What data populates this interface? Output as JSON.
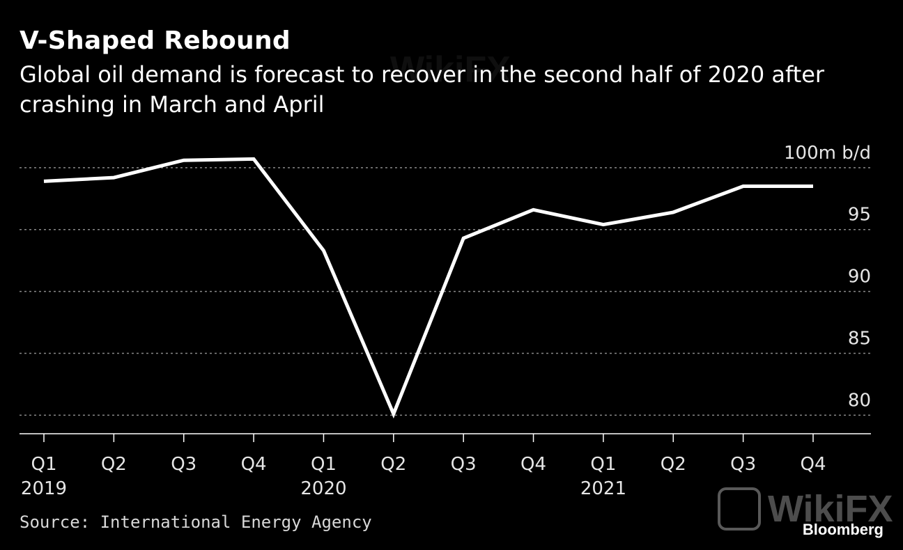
{
  "title": "V-Shaped Rebound",
  "subtitle": "Global oil demand is forecast to recover in the second half of 2020 after crashing in March and April",
  "source": "Source: International Energy Agency",
  "brand": "Bloomberg",
  "watermark": "WikiFX",
  "colors": {
    "background": "#000000",
    "line": "#ffffff",
    "grid": "#8a8a8a",
    "text": "#ffffff"
  },
  "chart_data": {
    "type": "line",
    "title": "V-Shaped Rebound",
    "subtitle": "Global oil demand is forecast to recover in the second half of 2020 after crashing in March and April",
    "x": [
      "Q1 2019",
      "Q2 2019",
      "Q3 2019",
      "Q4 2019",
      "Q1 2020",
      "Q2 2020",
      "Q3 2020",
      "Q4 2020",
      "Q1 2021",
      "Q2 2021",
      "Q3 2021",
      "Q4 2021"
    ],
    "quarter_labels": [
      "Q1",
      "Q2",
      "Q3",
      "Q4",
      "Q1",
      "Q2",
      "Q3",
      "Q4",
      "Q1",
      "Q2",
      "Q3",
      "Q4"
    ],
    "year_labels": [
      "2019",
      "",
      "",
      "",
      "2020",
      "",
      "",
      "",
      "2021",
      "",
      "",
      ""
    ],
    "series": [
      {
        "values": [
          98.9,
          99.2,
          100.6,
          100.7,
          93.3,
          80.1,
          94.3,
          96.6,
          95.4,
          96.4,
          98.5,
          98.5
        ]
      }
    ],
    "yticks": [
      80,
      85,
      90,
      95,
      100
    ],
    "ytick_labels": [
      "80",
      "85",
      "90",
      "95",
      "100m b/d"
    ],
    "ylim": [
      78.5,
      102.3
    ],
    "xlabel": "",
    "ylabel": "",
    "grid": true,
    "grid_style": "dotted horizontal",
    "y_axis_position": "right"
  }
}
